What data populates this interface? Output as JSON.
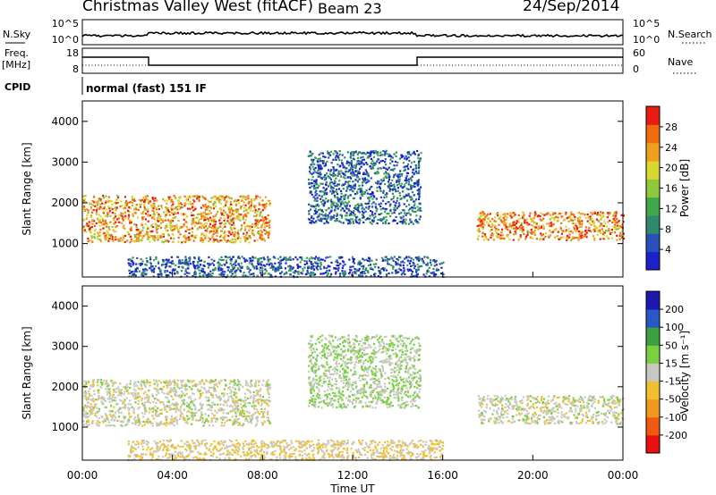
{
  "header": {
    "title": "Christmas Valley West (fitACF)",
    "beam": "Beam 23",
    "date": "24/Sep/2014"
  },
  "summary_panel": {
    "nsky_label": "N.Sky",
    "nsearch_label": "N.Search",
    "noise_ticks": [
      "10^5",
      "10^0"
    ],
    "freq_label_line1": "Freq.",
    "freq_label_line2": "[MHz]",
    "freq_ticks": [
      "18",
      "8"
    ],
    "nave_label": "Nave",
    "nave_ticks": [
      "60",
      "0"
    ],
    "cpid_label": "CPID",
    "cpid_text": "normal (fast) 151 IF"
  },
  "chart_data": [
    {
      "type": "heatmap",
      "panel": "power",
      "ylabel": "Slant Range [km]",
      "xlabel": "",
      "yticks": [
        1000,
        2000,
        3000,
        4000
      ],
      "ylim": [
        180,
        4500
      ],
      "xlim": [
        0,
        24
      ],
      "colorbar": {
        "label": "Power [dB]",
        "ticks": [
          "28",
          "24",
          "20",
          "16",
          "12",
          "8",
          "4"
        ],
        "range": [
          0,
          30
        ],
        "colors": [
          "#1a22c8",
          "#2850b8",
          "#2e8a6a",
          "#3fa84a",
          "#8ec93a",
          "#d8d830",
          "#f0a020",
          "#f06a10",
          "#e81c10"
        ]
      },
      "regions": [
        {
          "name": "night-echo-early",
          "t0": 0.0,
          "t1": 8.3,
          "r0": 1050,
          "r1": 2200,
          "level": 22
        },
        {
          "name": "night-echo-late",
          "t0": 17.5,
          "t1": 24.0,
          "r0": 1100,
          "r1": 1800,
          "level": 23
        },
        {
          "name": "day-arc",
          "t0": 10.0,
          "t1": 15.0,
          "r0": 1500,
          "r1": 3300,
          "level": 6
        },
        {
          "name": "near-range-ground",
          "t0": 2.0,
          "t1": 16.0,
          "r0": 200,
          "r1": 700,
          "level": 5
        }
      ]
    },
    {
      "type": "heatmap",
      "panel": "velocity",
      "ylabel": "Slant Range [km]",
      "xlabel": "Time UT",
      "xticks": [
        "00:00",
        "04:00",
        "08:00",
        "12:00",
        "16:00",
        "20:00",
        "00:00"
      ],
      "yticks": [
        1000,
        2000,
        3000,
        4000
      ],
      "ylim": [
        180,
        4500
      ],
      "xlim": [
        0,
        24
      ],
      "colorbar": {
        "label": "Velocity [m s⁻¹]",
        "ticks": [
          "200",
          "100",
          "50",
          "15",
          "-15",
          "-50",
          "-100",
          "-200"
        ],
        "range": [
          -250,
          250
        ],
        "colors": [
          "#e81010",
          "#f05a10",
          "#f09820",
          "#f0c030",
          "#c8c8c0",
          "#7ad040",
          "#3aa040",
          "#2a58c8",
          "#1a1ab0"
        ]
      },
      "regions": [
        {
          "name": "night-echo-early",
          "t0": 0.0,
          "t1": 8.3,
          "r0": 1050,
          "r1": 2200,
          "level": 0
        },
        {
          "name": "night-echo-late",
          "t0": 17.5,
          "t1": 24.0,
          "r0": 1100,
          "r1": 1800,
          "level": 0
        },
        {
          "name": "day-arc",
          "t0": 10.0,
          "t1": 15.0,
          "r0": 1500,
          "r1": 3300,
          "level": 30
        },
        {
          "name": "near-range-ground",
          "t0": 2.0,
          "t1": 16.0,
          "r0": 200,
          "r1": 700,
          "level": -30
        }
      ]
    }
  ]
}
